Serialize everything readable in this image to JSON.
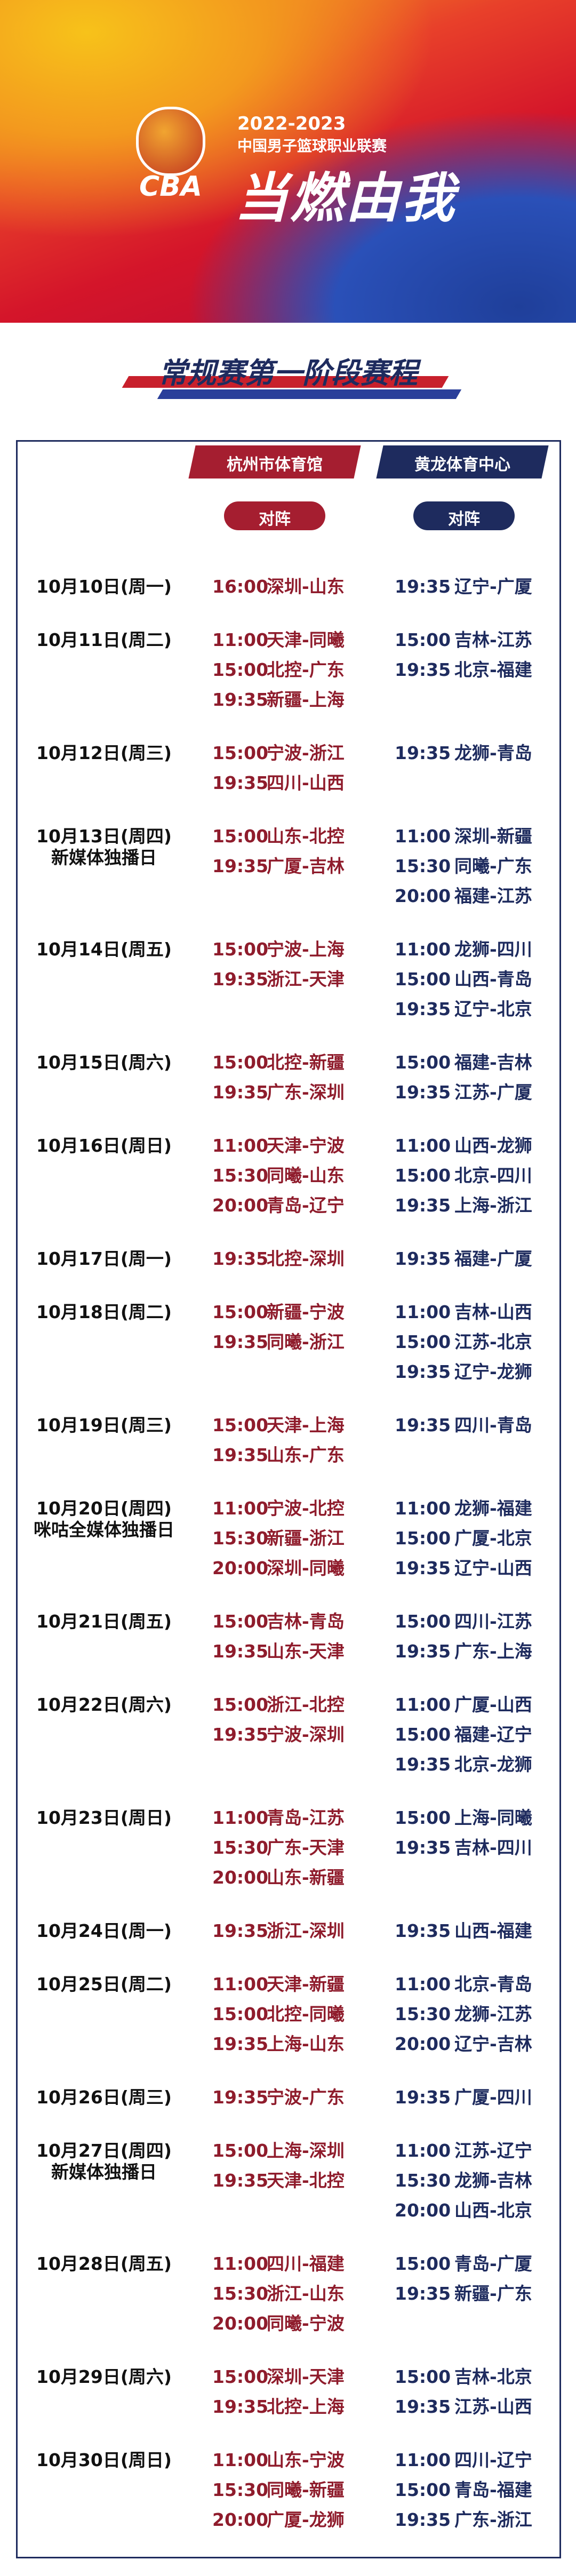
{
  "header": {
    "logo": "CBA",
    "season": "2022-2023",
    "league": "中国男子篮球职业联赛",
    "slogan": "当燃由我"
  },
  "section_title": "常规赛第一阶段赛程",
  "venues": [
    "杭州市体育馆",
    "黄龙体育中心"
  ],
  "column_headers": [
    "对阵",
    "对阵"
  ],
  "days": [
    {
      "date": "10月10日(周一)",
      "left": [
        {
          "time": "16:00",
          "match": "深圳-山东"
        }
      ],
      "right": [
        {
          "time": "19:35",
          "match": "辽宁-广厦"
        }
      ]
    },
    {
      "date": "10月11日(周二)",
      "left": [
        {
          "time": "11:00",
          "match": "天津-同曦"
        },
        {
          "time": "15:00",
          "match": "北控-广东"
        },
        {
          "time": "19:35",
          "match": "新疆-上海"
        }
      ],
      "right": [
        {
          "time": "15:00",
          "match": "吉林-江苏"
        },
        {
          "time": "19:35",
          "match": "北京-福建"
        }
      ]
    },
    {
      "date": "10月12日(周三)",
      "left": [
        {
          "time": "15:00",
          "match": "宁波-浙江"
        },
        {
          "time": "19:35",
          "match": "四川-山西"
        }
      ],
      "right": [
        {
          "time": "19:35",
          "match": "龙狮-青岛"
        }
      ]
    },
    {
      "date": "10月13日(周四)",
      "note": "新媒体独播日",
      "left": [
        {
          "time": "15:00",
          "match": "山东-北控"
        },
        {
          "time": "19:35",
          "match": "广厦-吉林"
        }
      ],
      "right": [
        {
          "time": "11:00",
          "match": "深圳-新疆"
        },
        {
          "time": "15:30",
          "match": "同曦-广东"
        },
        {
          "time": "20:00",
          "match": "福建-江苏"
        }
      ]
    },
    {
      "date": "10月14日(周五)",
      "left": [
        {
          "time": "15:00",
          "match": "宁波-上海"
        },
        {
          "time": "19:35",
          "match": "浙江-天津"
        }
      ],
      "right": [
        {
          "time": "11:00",
          "match": "龙狮-四川"
        },
        {
          "time": "15:00",
          "match": "山西-青岛"
        },
        {
          "time": "19:35",
          "match": "辽宁-北京"
        }
      ]
    },
    {
      "date": "10月15日(周六)",
      "left": [
        {
          "time": "15:00",
          "match": "北控-新疆"
        },
        {
          "time": "19:35",
          "match": "广东-深圳"
        }
      ],
      "right": [
        {
          "time": "15:00",
          "match": "福建-吉林"
        },
        {
          "time": "19:35",
          "match": "江苏-广厦"
        }
      ]
    },
    {
      "date": "10月16日(周日)",
      "left": [
        {
          "time": "11:00",
          "match": "天津-宁波"
        },
        {
          "time": "15:30",
          "match": "同曦-山东"
        },
        {
          "time": "20:00",
          "match": "青岛-辽宁"
        }
      ],
      "right": [
        {
          "time": "11:00",
          "match": "山西-龙狮"
        },
        {
          "time": "15:00",
          "match": "北京-四川"
        },
        {
          "time": "19:35",
          "match": "上海-浙江"
        }
      ]
    },
    {
      "date": "10月17日(周一)",
      "left": [
        {
          "time": "19:35",
          "match": "北控-深圳"
        }
      ],
      "right": [
        {
          "time": "19:35",
          "match": "福建-广厦"
        }
      ]
    },
    {
      "date": "10月18日(周二)",
      "left": [
        {
          "time": "15:00",
          "match": "新疆-宁波"
        },
        {
          "time": "19:35",
          "match": "同曦-浙江"
        }
      ],
      "right": [
        {
          "time": "11:00",
          "match": "吉林-山西"
        },
        {
          "time": "15:00",
          "match": "江苏-北京"
        },
        {
          "time": "19:35",
          "match": "辽宁-龙狮"
        }
      ]
    },
    {
      "date": "10月19日(周三)",
      "left": [
        {
          "time": "15:00",
          "match": "天津-上海"
        },
        {
          "time": "19:35",
          "match": "山东-广东"
        }
      ],
      "right": [
        {
          "time": "19:35",
          "match": "四川-青岛"
        }
      ]
    },
    {
      "date": "10月20日(周四)",
      "note": "咪咕全媒体独播日",
      "left": [
        {
          "time": "11:00",
          "match": "宁波-北控"
        },
        {
          "time": "15:30",
          "match": "新疆-浙江"
        },
        {
          "time": "20:00",
          "match": "深圳-同曦"
        }
      ],
      "right": [
        {
          "time": "11:00",
          "match": "龙狮-福建"
        },
        {
          "time": "15:00",
          "match": "广厦-北京"
        },
        {
          "time": "19:35",
          "match": "辽宁-山西"
        }
      ]
    },
    {
      "date": "10月21日(周五)",
      "left": [
        {
          "time": "15:00",
          "match": "吉林-青岛"
        },
        {
          "time": "19:35",
          "match": "山东-天津"
        }
      ],
      "right": [
        {
          "time": "15:00",
          "match": "四川-江苏"
        },
        {
          "time": "19:35",
          "match": "广东-上海"
        }
      ]
    },
    {
      "date": "10月22日(周六)",
      "left": [
        {
          "time": "15:00",
          "match": "浙江-北控"
        },
        {
          "time": "19:35",
          "match": "宁波-深圳"
        }
      ],
      "right": [
        {
          "time": "11:00",
          "match": "广厦-山西"
        },
        {
          "time": "15:00",
          "match": "福建-辽宁"
        },
        {
          "time": "19:35",
          "match": "北京-龙狮"
        }
      ]
    },
    {
      "date": "10月23日(周日)",
      "left": [
        {
          "time": "11:00",
          "match": "青岛-江苏"
        },
        {
          "time": "15:30",
          "match": "广东-天津"
        },
        {
          "time": "20:00",
          "match": "山东-新疆"
        }
      ],
      "right": [
        {
          "time": "15:00",
          "match": "上海-同曦"
        },
        {
          "time": "19:35",
          "match": "吉林-四川"
        }
      ]
    },
    {
      "date": "10月24日(周一)",
      "left": [
        {
          "time": "19:35",
          "match": "浙江-深圳"
        }
      ],
      "right": [
        {
          "time": "19:35",
          "match": "山西-福建"
        }
      ]
    },
    {
      "date": "10月25日(周二)",
      "left": [
        {
          "time": "11:00",
          "match": "天津-新疆"
        },
        {
          "time": "15:00",
          "match": "北控-同曦"
        },
        {
          "time": "19:35",
          "match": "上海-山东"
        }
      ],
      "right": [
        {
          "time": "11:00",
          "match": "北京-青岛"
        },
        {
          "time": "15:30",
          "match": "龙狮-江苏"
        },
        {
          "time": "20:00",
          "match": "辽宁-吉林"
        }
      ]
    },
    {
      "date": "10月26日(周三)",
      "left": [
        {
          "time": "19:35",
          "match": "宁波-广东"
        }
      ],
      "right": [
        {
          "time": "19:35",
          "match": "广厦-四川"
        }
      ]
    },
    {
      "date": "10月27日(周四)",
      "note": "新媒体独播日",
      "left": [
        {
          "time": "15:00",
          "match": "上海-深圳"
        },
        {
          "time": "19:35",
          "match": "天津-北控"
        }
      ],
      "right": [
        {
          "time": "11:00",
          "match": "江苏-辽宁"
        },
        {
          "time": "15:30",
          "match": "龙狮-吉林"
        },
        {
          "time": "20:00",
          "match": "山西-北京"
        }
      ]
    },
    {
      "date": "10月28日(周五)",
      "left": [
        {
          "time": "11:00",
          "match": "四川-福建"
        },
        {
          "time": "15:30",
          "match": "浙江-山东"
        },
        {
          "time": "20:00",
          "match": "同曦-宁波"
        }
      ],
      "right": [
        {
          "time": "15:00",
          "match": "青岛-广厦"
        },
        {
          "time": "19:35",
          "match": "新疆-广东"
        }
      ]
    },
    {
      "date": "10月29日(周六)",
      "left": [
        {
          "time": "15:00",
          "match": "深圳-天津"
        },
        {
          "time": "19:35",
          "match": "北控-上海"
        }
      ],
      "right": [
        {
          "time": "15:00",
          "match": "吉林-北京"
        },
        {
          "time": "19:35",
          "match": "江苏-山西"
        }
      ]
    },
    {
      "date": "10月30日(周日)",
      "left": [
        {
          "time": "11:00",
          "match": "山东-宁波"
        },
        {
          "time": "15:30",
          "match": "同曦-新疆"
        },
        {
          "time": "20:00",
          "match": "广厦-龙狮"
        }
      ],
      "right": [
        {
          "time": "11:00",
          "match": "四川-辽宁"
        },
        {
          "time": "15:00",
          "match": "青岛-福建"
        },
        {
          "time": "19:35",
          "match": "广东-浙江"
        }
      ]
    }
  ]
}
